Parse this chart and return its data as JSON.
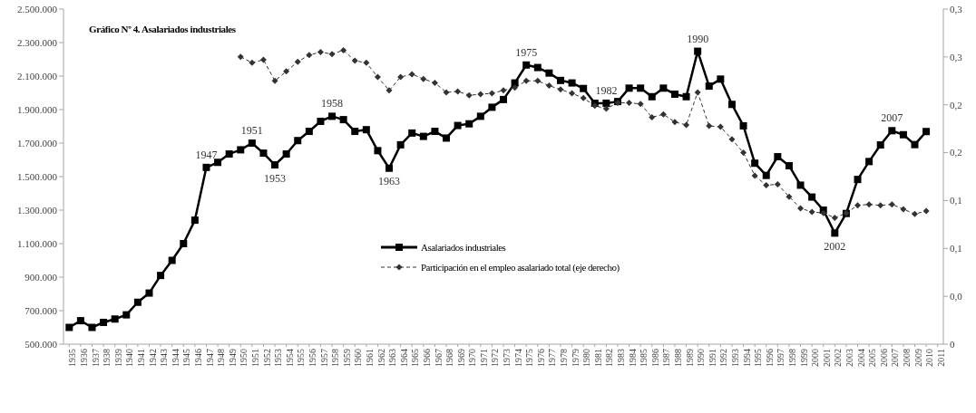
{
  "chart_data": {
    "type": "line",
    "title": "Gráfico Nº 4. Asalariados industriales",
    "categories": [
      "1935",
      "1936",
      "1937",
      "1938",
      "1939",
      "1940",
      "1941",
      "1942",
      "1943",
      "1944",
      "1945",
      "1946",
      "1947",
      "1948",
      "1949",
      "1950",
      "1951",
      "1952",
      "1953",
      "1954",
      "1955",
      "1956",
      "1957",
      "1958",
      "1959",
      "1960",
      "1961",
      "1962",
      "1963",
      "1964",
      "1965",
      "1966",
      "1967",
      "1968",
      "1969",
      "1970",
      "1971",
      "1972",
      "1973",
      "1974",
      "1975",
      "1976",
      "1977",
      "1978",
      "1979",
      "1980",
      "1981",
      "1982",
      "1983",
      "1984",
      "1985",
      "1986",
      "1987",
      "1988",
      "1989",
      "1990",
      "1991",
      "1992",
      "1993",
      "1994",
      "1995",
      "1996",
      "1997",
      "1998",
      "1999",
      "2000",
      "2001",
      "2002",
      "2003",
      "2004",
      "2005",
      "2006",
      "2007",
      "2008",
      "2009",
      "2010",
      "2011"
    ],
    "series": [
      {
        "name": "Asalariados industriales",
        "color": "#000000",
        "marker": "square",
        "line_style": "solid",
        "values": [
          600000,
          640000,
          600000,
          630000,
          650000,
          675000,
          750000,
          805000,
          910000,
          1000000,
          1100000,
          1240000,
          1555000,
          1585000,
          1635000,
          1660000,
          1700000,
          1640000,
          1570000,
          1635000,
          1715000,
          1770000,
          1830000,
          1860000,
          1840000,
          1770000,
          1780000,
          1655000,
          1550000,
          1690000,
          1760000,
          1740000,
          1770000,
          1730000,
          1805000,
          1815000,
          1860000,
          1914000,
          1960000,
          2059000,
          2166000,
          2151000,
          2118000,
          2074000,
          2059000,
          2026000,
          1938000,
          1938000,
          1948000,
          2028000,
          2028000,
          1977000,
          2028000,
          1992000,
          1977000,
          2248000,
          2040000,
          2082000,
          1931000,
          1803000,
          1580000,
          1507000,
          1619000,
          1565000,
          1449000,
          1378000,
          1300000,
          1163000,
          1280000,
          1483000,
          1590000,
          1689000,
          1774000,
          1750000,
          1691000,
          1769000,
          null
        ]
      },
      {
        "name": "Participación en el empleo asalariado total (eje derecho)",
        "color": "#333333",
        "marker": "diamond",
        "line_style": "dashed",
        "axis": "y2",
        "values": [
          null,
          null,
          null,
          null,
          null,
          null,
          null,
          null,
          null,
          null,
          null,
          null,
          null,
          null,
          null,
          0.3,
          0.294,
          0.297,
          0.275,
          0.285,
          0.295,
          0.302,
          0.305,
          0.303,
          0.307,
          0.296,
          0.294,
          0.279,
          0.265,
          0.279,
          0.282,
          0.277,
          0.273,
          0.263,
          0.264,
          0.26,
          0.261,
          0.262,
          0.265,
          0.268,
          0.275,
          0.275,
          0.27,
          0.266,
          0.262,
          0.257,
          0.249,
          0.246,
          0.252,
          0.252,
          0.251,
          0.237,
          0.24,
          0.232,
          0.229,
          0.263,
          0.228,
          0.227,
          0.214,
          0.2,
          0.176,
          0.166,
          0.167,
          0.154,
          0.142,
          0.138,
          0.137,
          0.132,
          0.137,
          0.145,
          0.146,
          0.145,
          0.146,
          0.141,
          0.136,
          0.139,
          null
        ]
      }
    ],
    "ylim": [
      500000,
      2500000
    ],
    "yticks": [
      {
        "value": 500000,
        "label": "500.000"
      },
      {
        "value": 700000,
        "label": "700.000"
      },
      {
        "value": 900000,
        "label": "900.000"
      },
      {
        "value": 1100000,
        "label": "1.100.000"
      },
      {
        "value": 1300000,
        "label": "1.300.000"
      },
      {
        "value": 1500000,
        "label": "1.500.000"
      },
      {
        "value": 1700000,
        "label": "1.700.000"
      },
      {
        "value": 1900000,
        "label": "1.900.000"
      },
      {
        "value": 2100000,
        "label": "2.100.000"
      },
      {
        "value": 2300000,
        "label": "2.300.000"
      },
      {
        "value": 2500000,
        "label": "2.500.000"
      }
    ],
    "y2lim": [
      0,
      0.35
    ],
    "y2ticks": [
      0,
      {
        "value": 0.05,
        "label": "0,0"
      },
      {
        "value": 0.1,
        "label": "0,1"
      },
      {
        "value": 0.15,
        "label": "0,1"
      },
      {
        "value": 0.2,
        "label": "0,2"
      },
      {
        "value": 0.25,
        "label": "0,2"
      },
      {
        "value": 0.3,
        "label": "0,3"
      },
      {
        "value": 0.35,
        "label": "0,3"
      }
    ],
    "annotations": [
      {
        "text": "1947",
        "x": "1947",
        "y": 1555000
      },
      {
        "text": "1951",
        "x": "1951",
        "y": 1700000
      },
      {
        "text": "1953",
        "x": "1953",
        "y": 1570000
      },
      {
        "text": "1958",
        "x": "1958",
        "y": 1860000
      },
      {
        "text": "1963",
        "x": "1963",
        "y": 1550000
      },
      {
        "text": "1975",
        "x": "1975",
        "y": 2166000
      },
      {
        "text": "1982",
        "x": "1982",
        "y": 1938000
      },
      {
        "text": "1990",
        "x": "1990",
        "y": 2248000
      },
      {
        "text": "2002",
        "x": "2002",
        "y": 1163000
      },
      {
        "text": "2007",
        "x": "2007",
        "y": 1774000
      }
    ],
    "grid": false,
    "legend": "center"
  }
}
